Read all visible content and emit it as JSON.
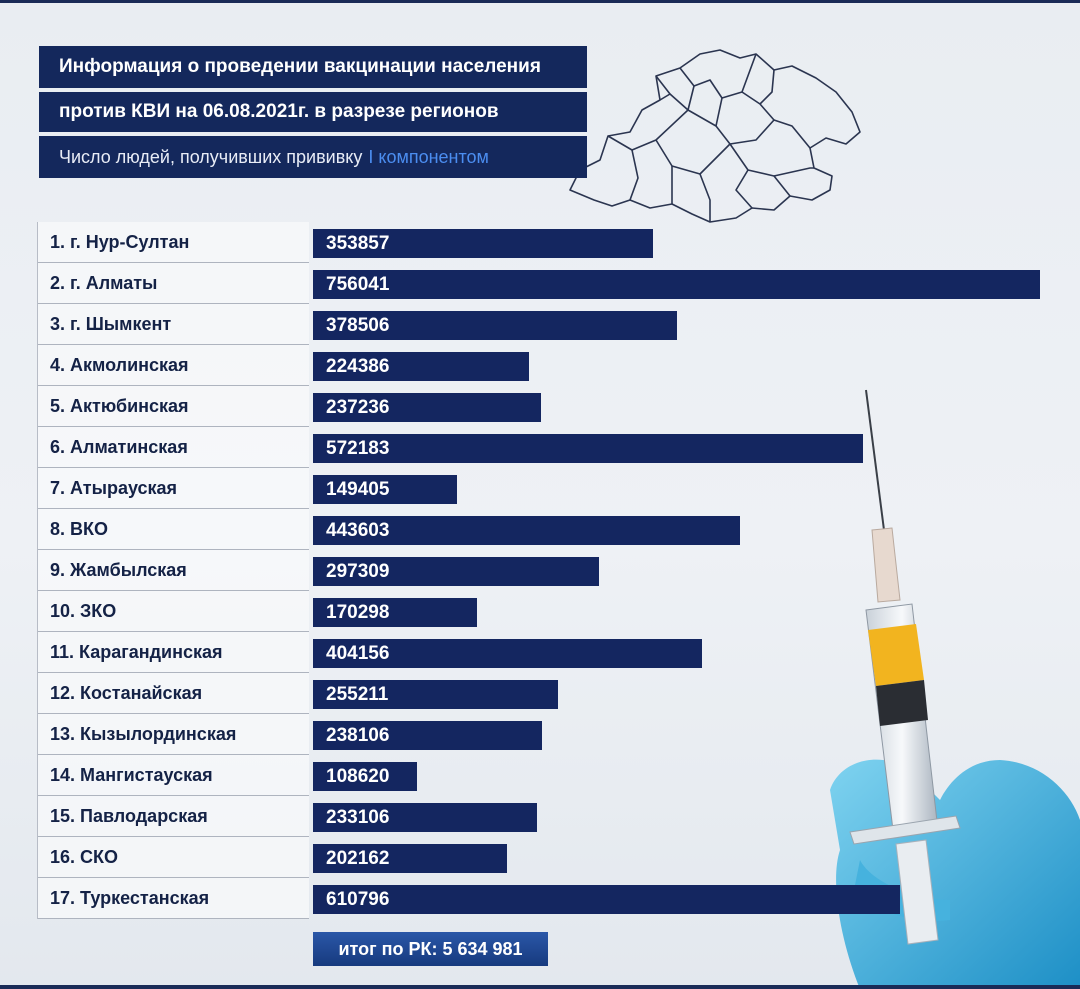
{
  "header": {
    "title_line1": "Информация о проведении вакцинации населения",
    "title_line2": "против КВИ на 06.08.2021г. в разрезе регионов",
    "subtitle": "Число людей, получивших прививку",
    "subtitle_accent": "I компонентом"
  },
  "colors": {
    "bar": "#142660",
    "title_bg": "#14285c",
    "accent": "#4b8df0",
    "background": "#e9edf2"
  },
  "chart_data": {
    "type": "bar",
    "orientation": "horizontal",
    "categories": [
      "1. г. Нур-Султан",
      "2. г. Алматы",
      "3. г. Шымкент",
      "4. Акмолинская",
      "5. Актюбинская",
      "6. Алматинская",
      "7. Атырауская",
      "8. ВКО",
      "9. Жамбылская",
      "10. ЗКО",
      "11. Карагандинская",
      "12. Костанайская",
      "13. Кызылординская",
      "14. Мангистауская",
      "15. Павлодарская",
      "16. СКО",
      "17. Туркестанская"
    ],
    "values": [
      353857,
      756041,
      378506,
      224386,
      237236,
      572183,
      149405,
      443603,
      297309,
      170298,
      404156,
      255211,
      238106,
      108620,
      233106,
      202162,
      610796
    ],
    "data_labels": [
      "353857",
      "756041",
      "378506",
      "224386",
      "237236",
      "572183",
      "149405",
      "443603",
      "297309",
      "170298",
      "404156",
      "255211",
      "238106",
      "108620",
      "233106",
      "202162",
      "610796"
    ],
    "xlim": [
      0,
      756041
    ],
    "grid": false,
    "legend": "none"
  },
  "footer": {
    "total_label": "итог по РК: 5 634 981"
  }
}
